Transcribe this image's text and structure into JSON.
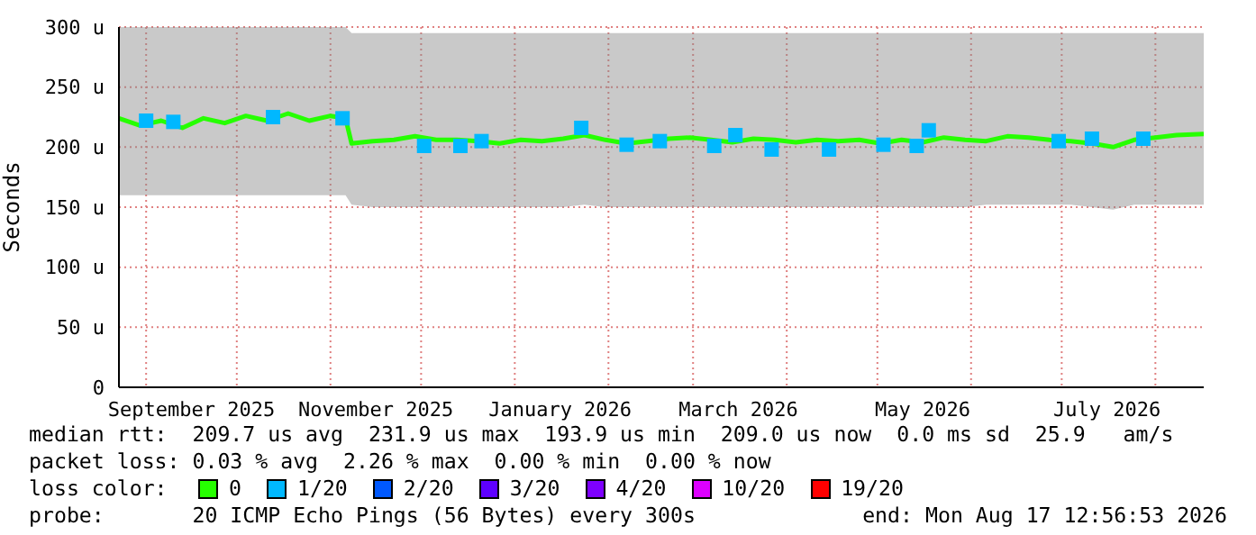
{
  "chart_data": {
    "type": "line",
    "ylabel": "Seconds",
    "legend_title": "loss color:",
    "legend": "bottom",
    "grid": true,
    "xlim": [
      "2025-08-23",
      "2026-08-17"
    ],
    "xticks": [
      {
        "value": "2025-09-01",
        "label": null
      },
      {
        "value": "2025-09-16",
        "label": "September 2025"
      },
      {
        "value": "2025-10-01",
        "label": null
      },
      {
        "value": "2025-11-01",
        "label": null
      },
      {
        "value": "2025-11-16",
        "label": "November 2025"
      },
      {
        "value": "2025-12-01",
        "label": null
      },
      {
        "value": "2026-01-01",
        "label": null
      },
      {
        "value": "2026-01-16",
        "label": "January 2026"
      },
      {
        "value": "2026-02-01",
        "label": null
      },
      {
        "value": "2026-03-01",
        "label": null
      },
      {
        "value": "2026-03-16",
        "label": "March 2026"
      },
      {
        "value": "2026-04-01",
        "label": null
      },
      {
        "value": "2026-05-01",
        "label": null
      },
      {
        "value": "2026-05-16",
        "label": "May 2026"
      },
      {
        "value": "2026-06-01",
        "label": null
      },
      {
        "value": "2026-07-01",
        "label": null
      },
      {
        "value": "2026-07-16",
        "label": "July 2026"
      },
      {
        "value": "2026-08-01",
        "label": null
      }
    ],
    "ylim": [
      0,
      300
    ],
    "yticks": [
      0,
      {
        "value": 50,
        "label": "50 u"
      },
      {
        "value": 100,
        "label": "100 u"
      },
      {
        "value": 150,
        "label": "150 u"
      },
      {
        "value": 200,
        "label": "200 u"
      },
      {
        "value": 250,
        "label": "250 u"
      },
      {
        "value": 300,
        "label": "300 u"
      }
    ],
    "series": [
      {
        "name": "0",
        "color": "#26ff00",
        "x": [
          "2025-08-23",
          "2025-08-30",
          "2025-09-06",
          "2025-09-13",
          "2025-09-20",
          "2025-09-27",
          "2025-10-04",
          "2025-10-11",
          "2025-10-18",
          "2025-10-25",
          "2025-11-01",
          "2025-11-06",
          "2025-11-08",
          "2025-11-15",
          "2025-11-22",
          "2025-11-29",
          "2025-12-06",
          "2025-12-13",
          "2025-12-20",
          "2025-12-27",
          "2026-01-03",
          "2026-01-10",
          "2026-01-17",
          "2026-01-24",
          "2026-01-31",
          "2026-02-07",
          "2026-02-14",
          "2026-02-21",
          "2026-02-28",
          "2026-03-07",
          "2026-03-14",
          "2026-03-21",
          "2026-03-28",
          "2026-04-04",
          "2026-04-11",
          "2026-04-18",
          "2026-04-25",
          "2026-05-02",
          "2026-05-09",
          "2026-05-16",
          "2026-05-23",
          "2026-05-30",
          "2026-06-06",
          "2026-06-13",
          "2026-06-20",
          "2026-06-27",
          "2026-07-04",
          "2026-07-11",
          "2026-07-18",
          "2026-07-25",
          "2026-08-01",
          "2026-08-08",
          "2026-08-17"
        ],
        "values": [
          224,
          218,
          222,
          216,
          224,
          220,
          226,
          222,
          228,
          222,
          226,
          224,
          203,
          205,
          206,
          209,
          206,
          206,
          205,
          203,
          206,
          205,
          207,
          210,
          206,
          203,
          205,
          207,
          208,
          206,
          204,
          207,
          206,
          204,
          206,
          205,
          206,
          203,
          206,
          204,
          208,
          206,
          205,
          209,
          208,
          206,
          205,
          203,
          200,
          206,
          208,
          210,
          211
        ],
        "lower": [
          160,
          160,
          160,
          160,
          160,
          160,
          160,
          160,
          160,
          160,
          160,
          160,
          152,
          150,
          150,
          150,
          150,
          150,
          150,
          150,
          150,
          150,
          150,
          152,
          150,
          150,
          150,
          150,
          150,
          150,
          150,
          150,
          150,
          150,
          150,
          150,
          150,
          150,
          150,
          150,
          150,
          150,
          152,
          152,
          152,
          152,
          152,
          150,
          148,
          152,
          152,
          152,
          152
        ],
        "upper": [
          300,
          300,
          300,
          300,
          300,
          300,
          300,
          300,
          300,
          300,
          300,
          300,
          295,
          295,
          295,
          295,
          295,
          295,
          295,
          295,
          295,
          295,
          295,
          295,
          295,
          295,
          295,
          295,
          295,
          295,
          295,
          295,
          295,
          295,
          295,
          295,
          295,
          295,
          295,
          295,
          295,
          295,
          295,
          295,
          295,
          295,
          295,
          295,
          295,
          295,
          295,
          295,
          295
        ]
      },
      {
        "name": "1/20",
        "type": "scatter",
        "color": "#00b8ff",
        "marker": "square",
        "x": [
          "2025-09-01",
          "2025-09-10",
          "2025-10-13",
          "2025-11-05",
          "2025-12-02",
          "2025-12-14",
          "2025-12-21",
          "2026-01-23",
          "2026-02-07",
          "2026-02-18",
          "2026-03-08",
          "2026-03-15",
          "2026-03-27",
          "2026-04-15",
          "2026-05-03",
          "2026-05-14",
          "2026-05-18",
          "2026-06-30",
          "2026-07-11",
          "2026-07-28"
        ],
        "values": [
          222,
          221,
          225,
          224,
          201,
          201,
          205,
          216,
          202,
          205,
          201,
          210,
          198,
          198,
          202,
          201,
          214,
          205,
          207,
          207
        ]
      },
      {
        "name": "2/20",
        "type": "scatter",
        "color": "#0059ff",
        "marker": "square"
      },
      {
        "name": "3/20",
        "type": "scatter",
        "color": "#5e00ff",
        "marker": "square"
      },
      {
        "name": "4/20",
        "type": "scatter",
        "color": "#7e00ff",
        "marker": "square"
      },
      {
        "name": "10/20",
        "type": "scatter",
        "color": "#dd00ff",
        "marker": "square"
      },
      {
        "name": "19/20",
        "type": "scatter",
        "color": "#ff0000",
        "marker": "square"
      }
    ],
    "annotations": [
      "median rtt:  209.7 us avg  231.9 us max  193.9 us min  209.0 us now  0.0 ms sd  25.9   am/s",
      "packet loss: 0.03 % avg  2.26 % max  0.00 % min  0.00 % now",
      "probe:       20 ICMP Echo Pings (56 Bytes) every 300s",
      "end: Mon Aug 17 12:56:53 2026"
    ]
  }
}
